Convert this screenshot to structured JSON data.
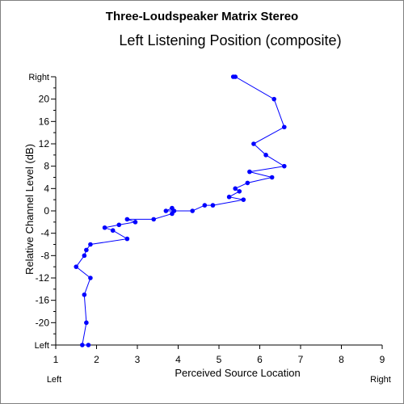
{
  "chart_data": {
    "type": "line",
    "title": "Three-Loudspeaker Matrix Stereo",
    "subtitle": "Left Listening Position (composite)",
    "xlabel": "Perceived Source Location",
    "ylabel": "Relative Channel Level (dB)",
    "xlim": [
      1,
      9
    ],
    "ylim": [
      -24,
      24
    ],
    "x_ticks": [
      "1",
      "2",
      "3",
      "4",
      "5",
      "6",
      "7",
      "8",
      "9"
    ],
    "y_ticks": [
      "Left",
      "-20",
      "-16",
      "-12",
      "-8",
      "-4",
      "0",
      "4",
      "8",
      "12",
      "16",
      "20",
      "Right"
    ],
    "x_end_labels": {
      "left": "Left",
      "right": "Right"
    },
    "grid": false,
    "series": [
      {
        "color": "#0000ff",
        "points": [
          [
            5.35,
            24
          ],
          [
            5.4,
            24
          ],
          [
            6.35,
            20
          ],
          [
            6.6,
            15
          ],
          [
            5.85,
            12
          ],
          [
            6.15,
            10
          ],
          [
            6.6,
            8
          ],
          [
            5.75,
            7
          ],
          [
            6.3,
            6
          ],
          [
            5.7,
            5
          ],
          [
            5.4,
            4
          ],
          [
            5.5,
            3.5
          ],
          [
            5.25,
            2.5
          ],
          [
            5.6,
            2
          ],
          [
            4.85,
            1
          ],
          [
            4.65,
            1
          ],
          [
            4.35,
            0
          ],
          [
            3.7,
            0
          ],
          [
            3.85,
            0.5
          ],
          [
            3.9,
            0
          ],
          [
            3.85,
            -0.5
          ],
          [
            3.4,
            -1.5
          ],
          [
            2.75,
            -1.5
          ],
          [
            2.95,
            -2
          ],
          [
            2.55,
            -2.5
          ],
          [
            2.2,
            -3
          ],
          [
            2.4,
            -3.5
          ],
          [
            2.75,
            -5
          ],
          [
            1.85,
            -6
          ],
          [
            1.75,
            -7
          ],
          [
            1.7,
            -8
          ],
          [
            1.5,
            -10
          ],
          [
            1.85,
            -12
          ],
          [
            1.7,
            -15
          ],
          [
            1.75,
            -20
          ],
          [
            1.65,
            -24
          ],
          [
            1.8,
            -24
          ]
        ]
      }
    ]
  }
}
